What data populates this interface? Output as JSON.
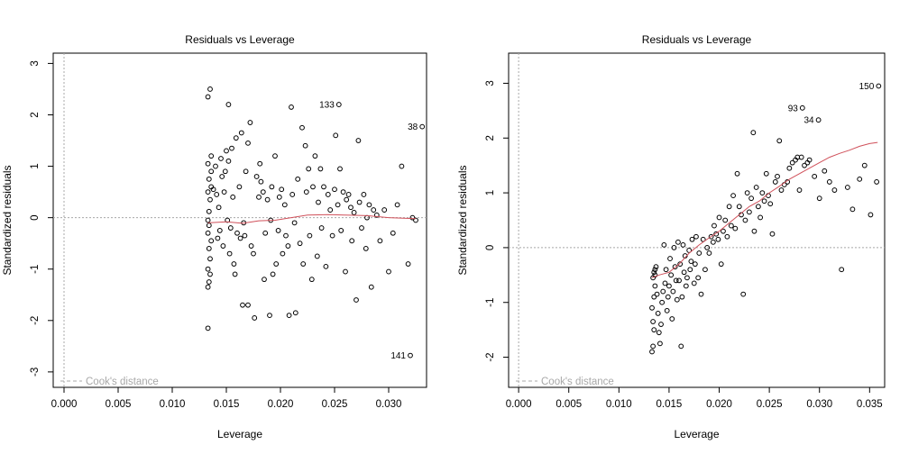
{
  "colors": {
    "axis": "#000000",
    "points": "#000000",
    "smoother": "#d0505a",
    "reference": "#a8a8a8",
    "background": "#ffffff"
  },
  "chart_data": [
    {
      "type": "scatter",
      "title": "Residuals vs Leverage",
      "xlabel": "Leverage",
      "ylabel": "Standardized residuals",
      "xlim": [
        -0.001,
        0.0335
      ],
      "ylim": [
        -3.3,
        3.2
      ],
      "xticks": [
        "0.000",
        "0.005",
        "0.010",
        "0.015",
        "0.020",
        "0.025",
        "0.030"
      ],
      "yticks": [
        "-3",
        "-2",
        "-1",
        "0",
        "1",
        "2",
        "3"
      ],
      "legend": "Cook's distance",
      "legend_position": "bottom-left",
      "grid": false,
      "labeled_points": [
        {
          "label": "133",
          "x": 0.0254,
          "y": 2.2
        },
        {
          "label": "38",
          "x": 0.0331,
          "y": 1.77
        },
        {
          "label": "141",
          "x": 0.032,
          "y": -2.68
        }
      ],
      "points": [
        [
          0.0133,
          2.35
        ],
        [
          0.0135,
          2.5
        ],
        [
          0.0133,
          1.05
        ],
        [
          0.0136,
          0.9
        ],
        [
          0.0134,
          0.75
        ],
        [
          0.0136,
          0.6
        ],
        [
          0.0133,
          0.5
        ],
        [
          0.0135,
          0.35
        ],
        [
          0.0134,
          0.12
        ],
        [
          0.0133,
          -0.05
        ],
        [
          0.0134,
          -0.15
        ],
        [
          0.0133,
          -0.3
        ],
        [
          0.0136,
          -0.45
        ],
        [
          0.0134,
          -0.6
        ],
        [
          0.0135,
          -0.8
        ],
        [
          0.0133,
          -1.0
        ],
        [
          0.0135,
          -1.1
        ],
        [
          0.0134,
          -1.25
        ],
        [
          0.0133,
          -1.35
        ],
        [
          0.0133,
          -2.15
        ],
        [
          0.0136,
          1.2
        ],
        [
          0.0138,
          0.55
        ],
        [
          0.014,
          1.0
        ],
        [
          0.0141,
          0.45
        ],
        [
          0.0142,
          -0.4
        ],
        [
          0.0143,
          0.2
        ],
        [
          0.0144,
          -0.25
        ],
        [
          0.0145,
          1.15
        ],
        [
          0.0146,
          0.8
        ],
        [
          0.0147,
          -0.55
        ],
        [
          0.0148,
          0.5
        ],
        [
          0.0149,
          0.9
        ],
        [
          0.015,
          1.3
        ],
        [
          0.0151,
          -0.05
        ],
        [
          0.0152,
          2.2
        ],
        [
          0.0152,
          1.1
        ],
        [
          0.0153,
          -0.7
        ],
        [
          0.0154,
          -0.2
        ],
        [
          0.0155,
          1.35
        ],
        [
          0.0156,
          0.4
        ],
        [
          0.0157,
          -0.9
        ],
        [
          0.0158,
          -1.1
        ],
        [
          0.0159,
          1.55
        ],
        [
          0.016,
          -0.3
        ],
        [
          0.0162,
          0.6
        ],
        [
          0.0163,
          -0.4
        ],
        [
          0.0164,
          1.65
        ],
        [
          0.0165,
          -1.7
        ],
        [
          0.0166,
          -0.1
        ],
        [
          0.0167,
          -0.35
        ],
        [
          0.0168,
          0.9
        ],
        [
          0.017,
          1.45
        ],
        [
          0.017,
          -1.7
        ],
        [
          0.0172,
          1.85
        ],
        [
          0.0173,
          -0.55
        ],
        [
          0.0175,
          -0.7
        ],
        [
          0.0176,
          -1.95
        ],
        [
          0.0178,
          0.8
        ],
        [
          0.018,
          0.4
        ],
        [
          0.0181,
          1.05
        ],
        [
          0.0182,
          0.7
        ],
        [
          0.0184,
          0.5
        ],
        [
          0.0185,
          -1.2
        ],
        [
          0.0186,
          -0.3
        ],
        [
          0.0188,
          0.35
        ],
        [
          0.019,
          -1.9
        ],
        [
          0.0191,
          -0.05
        ],
        [
          0.0192,
          0.6
        ],
        [
          0.0193,
          -1.1
        ],
        [
          0.0195,
          1.2
        ],
        [
          0.0196,
          -0.9
        ],
        [
          0.0198,
          -0.25
        ],
        [
          0.0199,
          0.4
        ],
        [
          0.0201,
          0.55
        ],
        [
          0.0202,
          -0.7
        ],
        [
          0.0204,
          0.25
        ],
        [
          0.0205,
          -0.35
        ],
        [
          0.0207,
          -0.55
        ],
        [
          0.0208,
          -1.9
        ],
        [
          0.021,
          2.15
        ],
        [
          0.0211,
          0.45
        ],
        [
          0.0213,
          -0.1
        ],
        [
          0.0214,
          -1.85
        ],
        [
          0.0216,
          0.75
        ],
        [
          0.0218,
          -0.5
        ],
        [
          0.022,
          1.75
        ],
        [
          0.0221,
          -0.9
        ],
        [
          0.0223,
          1.4
        ],
        [
          0.0224,
          0.5
        ],
        [
          0.0226,
          0.95
        ],
        [
          0.0227,
          -0.35
        ],
        [
          0.0229,
          -1.2
        ],
        [
          0.023,
          0.6
        ],
        [
          0.0232,
          1.2
        ],
        [
          0.0234,
          -0.75
        ],
        [
          0.0235,
          0.3
        ],
        [
          0.0237,
          0.95
        ],
        [
          0.0238,
          -0.2
        ],
        [
          0.024,
          0.6
        ],
        [
          0.0242,
          -0.95
        ],
        [
          0.0244,
          0.45
        ],
        [
          0.0246,
          0.15
        ],
        [
          0.0248,
          -0.35
        ],
        [
          0.025,
          0.55
        ],
        [
          0.0251,
          1.6
        ],
        [
          0.0253,
          0.25
        ],
        [
          0.0255,
          0.95
        ],
        [
          0.0256,
          -0.25
        ],
        [
          0.0258,
          0.5
        ],
        [
          0.026,
          -1.05
        ],
        [
          0.0261,
          0.35
        ],
        [
          0.0263,
          0.45
        ],
        [
          0.0265,
          0.2
        ],
        [
          0.0266,
          -0.45
        ],
        [
          0.0268,
          0.1
        ],
        [
          0.027,
          -1.6
        ],
        [
          0.0272,
          1.5
        ],
        [
          0.0273,
          0.3
        ],
        [
          0.0275,
          -0.2
        ],
        [
          0.0277,
          0.45
        ],
        [
          0.0279,
          -0.6
        ],
        [
          0.028,
          0.0
        ],
        [
          0.0282,
          0.25
        ],
        [
          0.0284,
          -1.35
        ],
        [
          0.0286,
          0.15
        ],
        [
          0.0289,
          0.05
        ],
        [
          0.0292,
          -0.45
        ],
        [
          0.0296,
          0.15
        ],
        [
          0.03,
          -1.05
        ],
        [
          0.0304,
          -0.3
        ],
        [
          0.0308,
          0.25
        ],
        [
          0.0312,
          1.0
        ],
        [
          0.0318,
          -0.9
        ],
        [
          0.0322,
          0.0
        ],
        [
          0.0325,
          -0.05
        ]
      ],
      "smoother": [
        [
          0.0133,
          -0.1
        ],
        [
          0.015,
          -0.08
        ],
        [
          0.0165,
          -0.11
        ],
        [
          0.018,
          -0.06
        ],
        [
          0.0195,
          -0.05
        ],
        [
          0.021,
          0.0
        ],
        [
          0.0225,
          0.05
        ],
        [
          0.0245,
          0.06
        ],
        [
          0.026,
          0.05
        ],
        [
          0.028,
          0.04
        ],
        [
          0.03,
          0.0
        ],
        [
          0.0325,
          -0.02
        ]
      ],
      "hline": 0,
      "vline": 0
    },
    {
      "type": "scatter",
      "title": "Residuals vs Leverage",
      "xlabel": "Leverage",
      "ylabel": "Standardized residuals",
      "xlim": [
        -0.001,
        0.0365
      ],
      "ylim": [
        -2.55,
        3.55
      ],
      "xticks": [
        "0.000",
        "0.005",
        "0.010",
        "0.015",
        "0.020",
        "0.025",
        "0.030",
        "0.035"
      ],
      "yticks": [
        "-2",
        "-1",
        "0",
        "1",
        "2",
        "3"
      ],
      "legend": "Cook's distance",
      "legend_position": "bottom-left",
      "grid": false,
      "labeled_points": [
        {
          "label": "150",
          "x": 0.0359,
          "y": 2.95
        },
        {
          "label": "93",
          "x": 0.0283,
          "y": 2.55
        },
        {
          "label": "34",
          "x": 0.0299,
          "y": 2.33
        }
      ],
      "points": [
        [
          0.0133,
          -1.9
        ],
        [
          0.0134,
          -1.8
        ],
        [
          0.0135,
          -1.5
        ],
        [
          0.0134,
          -1.35
        ],
        [
          0.0133,
          -1.1
        ],
        [
          0.0135,
          -0.9
        ],
        [
          0.0136,
          -0.7
        ],
        [
          0.0134,
          -0.55
        ],
        [
          0.0136,
          -0.4
        ],
        [
          0.0135,
          -0.45
        ],
        [
          0.0137,
          -0.35
        ],
        [
          0.0136,
          -0.5
        ],
        [
          0.0138,
          -0.85
        ],
        [
          0.0139,
          -1.2
        ],
        [
          0.014,
          -1.55
        ],
        [
          0.0141,
          -1.75
        ],
        [
          0.0142,
          -1.4
        ],
        [
          0.0143,
          -1.0
        ],
        [
          0.0144,
          -0.8
        ],
        [
          0.0145,
          0.05
        ],
        [
          0.0146,
          -0.65
        ],
        [
          0.0147,
          -0.4
        ],
        [
          0.0148,
          -1.15
        ],
        [
          0.0149,
          -0.9
        ],
        [
          0.015,
          -0.7
        ],
        [
          0.0151,
          -0.2
        ],
        [
          0.0152,
          -0.5
        ],
        [
          0.0153,
          -1.3
        ],
        [
          0.0154,
          -0.8
        ],
        [
          0.0155,
          0.0
        ],
        [
          0.0156,
          -0.35
        ],
        [
          0.0157,
          -0.6
        ],
        [
          0.0158,
          -0.95
        ],
        [
          0.0159,
          0.1
        ],
        [
          0.016,
          -0.6
        ],
        [
          0.0161,
          -0.3
        ],
        [
          0.0162,
          -1.8
        ],
        [
          0.0163,
          -0.9
        ],
        [
          0.0164,
          0.05
        ],
        [
          0.0165,
          -0.45
        ],
        [
          0.0166,
          -0.15
        ],
        [
          0.0167,
          -0.7
        ],
        [
          0.0168,
          -0.55
        ],
        [
          0.017,
          -0.05
        ],
        [
          0.0171,
          -0.4
        ],
        [
          0.0172,
          -0.25
        ],
        [
          0.0173,
          0.15
        ],
        [
          0.0175,
          -0.65
        ],
        [
          0.0176,
          -0.3
        ],
        [
          0.0177,
          0.2
        ],
        [
          0.0179,
          -0.55
        ],
        [
          0.018,
          -0.1
        ],
        [
          0.0182,
          -0.85
        ],
        [
          0.0184,
          0.15
        ],
        [
          0.0186,
          -0.4
        ],
        [
          0.0188,
          0.0
        ],
        [
          0.019,
          -0.1
        ],
        [
          0.0192,
          0.2
        ],
        [
          0.0194,
          0.1
        ],
        [
          0.0195,
          0.4
        ],
        [
          0.0197,
          0.25
        ],
        [
          0.0199,
          0.15
        ],
        [
          0.02,
          0.55
        ],
        [
          0.0202,
          -0.3
        ],
        [
          0.0204,
          0.3
        ],
        [
          0.0206,
          0.5
        ],
        [
          0.0208,
          0.2
        ],
        [
          0.021,
          0.75
        ],
        [
          0.0212,
          0.4
        ],
        [
          0.0214,
          0.95
        ],
        [
          0.0216,
          0.35
        ],
        [
          0.0218,
          1.35
        ],
        [
          0.022,
          0.75
        ],
        [
          0.0222,
          0.6
        ],
        [
          0.0224,
          -0.85
        ],
        [
          0.0226,
          0.5
        ],
        [
          0.0228,
          1.0
        ],
        [
          0.023,
          0.65
        ],
        [
          0.0232,
          0.9
        ],
        [
          0.0234,
          2.1
        ],
        [
          0.0235,
          0.3
        ],
        [
          0.0237,
          1.1
        ],
        [
          0.0239,
          0.75
        ],
        [
          0.0241,
          0.55
        ],
        [
          0.0243,
          1.0
        ],
        [
          0.0245,
          0.85
        ],
        [
          0.0247,
          1.35
        ],
        [
          0.0249,
          0.95
        ],
        [
          0.0251,
          0.8
        ],
        [
          0.0253,
          0.25
        ],
        [
          0.0256,
          1.2
        ],
        [
          0.0258,
          1.3
        ],
        [
          0.026,
          1.95
        ],
        [
          0.0262,
          1.05
        ],
        [
          0.0265,
          1.15
        ],
        [
          0.0268,
          1.2
        ],
        [
          0.027,
          1.45
        ],
        [
          0.0273,
          1.55
        ],
        [
          0.0276,
          1.6
        ],
        [
          0.0278,
          1.65
        ],
        [
          0.028,
          1.05
        ],
        [
          0.0282,
          1.65
        ],
        [
          0.0285,
          1.5
        ],
        [
          0.0288,
          1.55
        ],
        [
          0.029,
          1.6
        ],
        [
          0.0295,
          1.3
        ],
        [
          0.03,
          0.9
        ],
        [
          0.0305,
          1.4
        ],
        [
          0.031,
          1.2
        ],
        [
          0.0315,
          1.05
        ],
        [
          0.0322,
          -0.4
        ],
        [
          0.0328,
          1.1
        ],
        [
          0.0333,
          0.7
        ],
        [
          0.034,
          1.25
        ],
        [
          0.0345,
          1.5
        ],
        [
          0.0351,
          0.6
        ],
        [
          0.0357,
          1.2
        ]
      ],
      "smoother": [
        [
          0.0133,
          -0.55
        ],
        [
          0.014,
          -0.5
        ],
        [
          0.015,
          -0.45
        ],
        [
          0.016,
          -0.3
        ],
        [
          0.017,
          -0.1
        ],
        [
          0.018,
          0.05
        ],
        [
          0.019,
          0.18
        ],
        [
          0.02,
          0.3
        ],
        [
          0.021,
          0.45
        ],
        [
          0.022,
          0.6
        ],
        [
          0.023,
          0.75
        ],
        [
          0.024,
          0.85
        ],
        [
          0.025,
          1.0
        ],
        [
          0.026,
          1.12
        ],
        [
          0.027,
          1.25
        ],
        [
          0.028,
          1.35
        ],
        [
          0.029,
          1.45
        ],
        [
          0.03,
          1.55
        ],
        [
          0.031,
          1.65
        ],
        [
          0.032,
          1.72
        ],
        [
          0.033,
          1.78
        ],
        [
          0.034,
          1.85
        ],
        [
          0.035,
          1.9
        ],
        [
          0.0358,
          1.92
        ]
      ],
      "hline": 0,
      "vline": 0
    }
  ]
}
